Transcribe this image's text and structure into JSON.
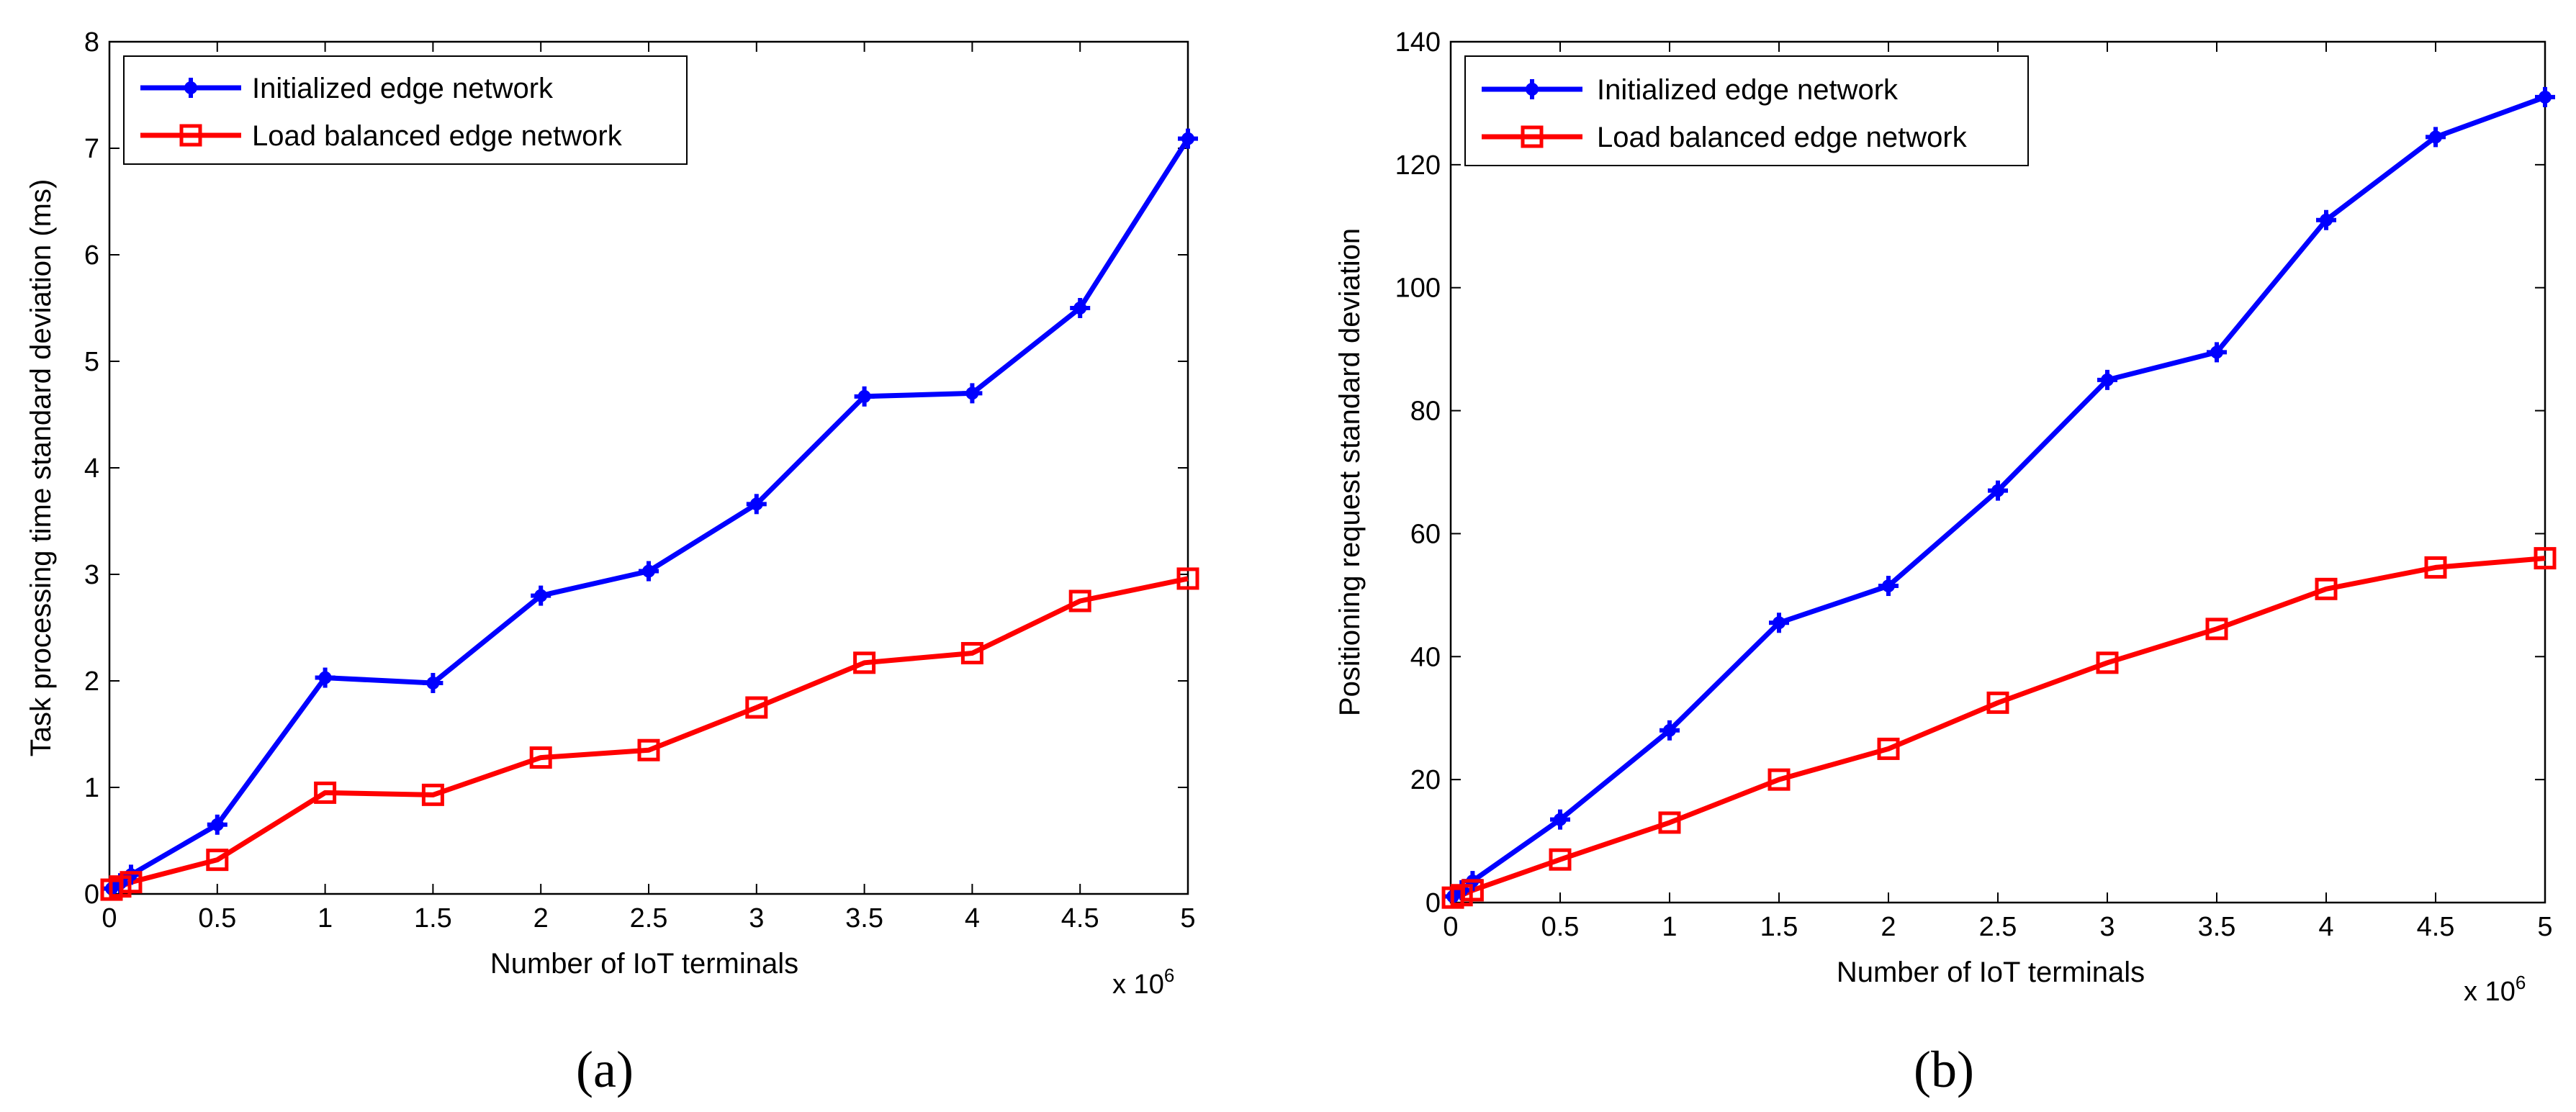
{
  "colors": {
    "initialized": "#0000ff",
    "balanced": "#ff0000",
    "axis": "#000000"
  },
  "chart_data": [
    {
      "id": "a",
      "type": "line",
      "panel_label": "(a)",
      "title": "",
      "xlabel": "Number of IoT terminals",
      "ylabel": "Task processing time standard deviation (ms)",
      "x_multiplier": "x 10",
      "x_multiplier_exp": "6",
      "xlim": [
        0,
        5
      ],
      "ylim": [
        0,
        8
      ],
      "xticks": [
        0,
        0.5,
        1,
        1.5,
        2,
        2.5,
        3,
        3.5,
        4,
        4.5,
        5
      ],
      "xtick_labels": [
        "0",
        "0.5",
        "1",
        "1.5",
        "2",
        "2.5",
        "3",
        "3.5",
        "4",
        "4.5",
        "5"
      ],
      "yticks": [
        0,
        1,
        2,
        3,
        4,
        5,
        6,
        7,
        8
      ],
      "ytick_labels": [
        "0",
        "1",
        "2",
        "3",
        "4",
        "5",
        "6",
        "7",
        "8"
      ],
      "legend_position": "top-left",
      "x": [
        0.01,
        0.05,
        0.1,
        0.5,
        1,
        1.5,
        2,
        2.5,
        3,
        3.5,
        4,
        4.5,
        5
      ],
      "series": [
        {
          "name": "Initialized edge network",
          "marker": "star",
          "values": [
            0.05,
            0.1,
            0.18,
            0.65,
            2.03,
            1.98,
            2.8,
            3.03,
            3.66,
            4.67,
            4.7,
            5.5,
            7.09
          ]
        },
        {
          "name": "Load balanced edge network",
          "marker": "square",
          "values": [
            0.04,
            0.07,
            0.11,
            0.32,
            0.95,
            0.93,
            1.28,
            1.35,
            1.75,
            2.17,
            2.26,
            2.75,
            2.96
          ]
        }
      ]
    },
    {
      "id": "b",
      "type": "line",
      "panel_label": "(b)",
      "title": "",
      "xlabel": "Number of IoT terminals",
      "ylabel": "Positioning request standard deviation",
      "x_multiplier": "x 10",
      "x_multiplier_exp": "6",
      "xlim": [
        0,
        5
      ],
      "ylim": [
        0,
        140
      ],
      "xticks": [
        0,
        0.5,
        1,
        1.5,
        2,
        2.5,
        3,
        3.5,
        4,
        4.5,
        5
      ],
      "xtick_labels": [
        "0",
        "0.5",
        "1",
        "1.5",
        "2",
        "2.5",
        "3",
        "3.5",
        "4",
        "4.5",
        "5"
      ],
      "yticks": [
        0,
        20,
        40,
        60,
        80,
        100,
        120,
        140
      ],
      "ytick_labels": [
        "0",
        "20",
        "40",
        "60",
        "80",
        "100",
        "120",
        "140"
      ],
      "legend_position": "top-left",
      "x": [
        0.01,
        0.05,
        0.1,
        0.5,
        1,
        1.5,
        2,
        2.5,
        3,
        3.5,
        4,
        4.5,
        5
      ],
      "series": [
        {
          "name": "Initialized edge network",
          "marker": "star",
          "values": [
            1,
            2,
            3.5,
            13.5,
            28,
            45.5,
            51.5,
            67,
            85,
            89.5,
            111,
            124.5,
            131
          ]
        },
        {
          "name": "Load balanced edge network",
          "marker": "square",
          "values": [
            0.8,
            1.2,
            2,
            7,
            13,
            20,
            25,
            32.5,
            39,
            44.5,
            51,
            54.5,
            56
          ]
        }
      ]
    }
  ]
}
